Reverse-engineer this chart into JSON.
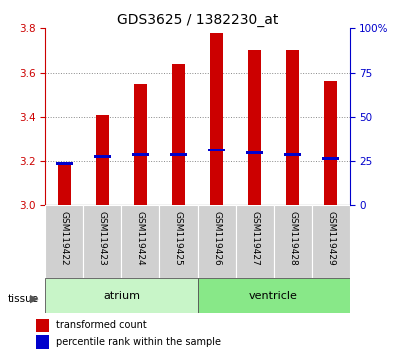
{
  "title": "GDS3625 / 1382230_at",
  "samples": [
    "GSM119422",
    "GSM119423",
    "GSM119424",
    "GSM119425",
    "GSM119426",
    "GSM119427",
    "GSM119428",
    "GSM119429"
  ],
  "red_bar_tops": [
    3.19,
    3.41,
    3.55,
    3.64,
    3.78,
    3.7,
    3.7,
    3.56
  ],
  "red_bar_base": 3.0,
  "blue_markers": [
    3.19,
    3.22,
    3.23,
    3.23,
    3.25,
    3.24,
    3.23,
    3.21
  ],
  "ylim_left": [
    3.0,
    3.8
  ],
  "ylim_right": [
    0,
    100
  ],
  "yticks_left": [
    3.0,
    3.2,
    3.4,
    3.6,
    3.8
  ],
  "yticks_right": [
    0,
    25,
    50,
    75,
    100
  ],
  "ytick_labels_right": [
    "0",
    "25",
    "50",
    "75",
    "100%"
  ],
  "tissue_groups": [
    {
      "label": "atrium",
      "start": 0,
      "end": 3,
      "color": "#c8f5c8"
    },
    {
      "label": "ventricle",
      "start": 4,
      "end": 7,
      "color": "#88e888"
    }
  ],
  "bar_color": "#cc0000",
  "marker_color": "#0000cc",
  "axis_left_color": "#cc0000",
  "axis_right_color": "#0000cc",
  "title_fontsize": 10,
  "tick_fontsize": 7.5,
  "sample_fontsize": 6.5,
  "bar_width": 0.35,
  "legend_items": [
    {
      "color": "#cc0000",
      "label": "transformed count"
    },
    {
      "color": "#0000cc",
      "label": "percentile rank within the sample"
    }
  ],
  "tissue_label": "tissue",
  "bg_color": "#ffffff",
  "grid_color": "#888888",
  "sample_bg_color": "#d0d0d0"
}
